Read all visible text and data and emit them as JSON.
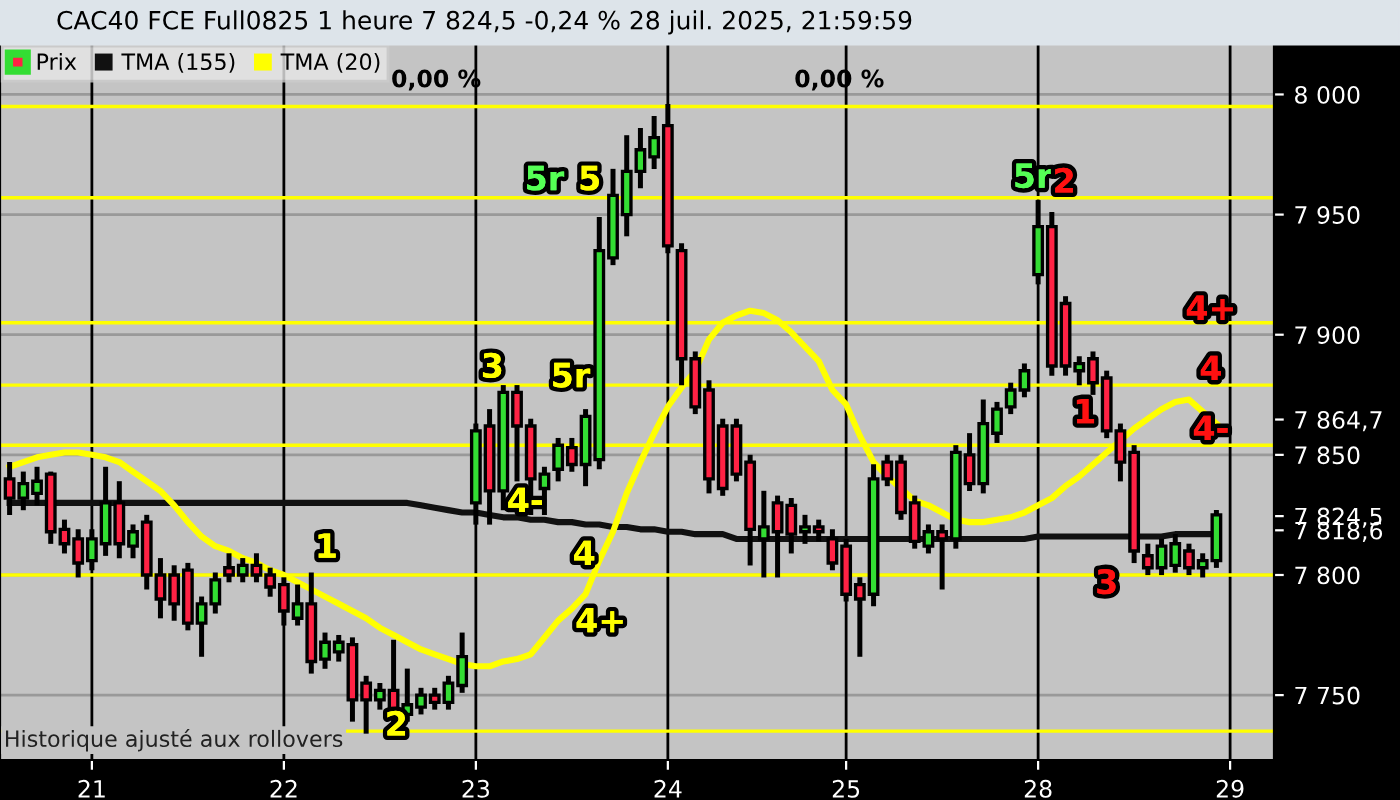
{
  "chart_data": {
    "type": "candlestick",
    "title": "CAC40 FCE Full0825 1 heure 7 824,5 -0,24 % 28 juil. 2025, 21:59:59",
    "categories": [
      null,
      null,
      null,
      null,
      null,
      null,
      "21",
      null,
      null,
      null,
      null,
      null,
      null,
      null,
      null,
      null,
      null,
      null,
      null,
      null,
      "22",
      null,
      null,
      null,
      null,
      null,
      null,
      null,
      null,
      null,
      null,
      null,
      null,
      null,
      "23",
      null,
      null,
      null,
      null,
      null,
      null,
      null,
      null,
      null,
      null,
      null,
      null,
      null,
      "24",
      null,
      null,
      null,
      null,
      null,
      null,
      null,
      null,
      null,
      null,
      null,
      null,
      "25",
      null,
      null,
      null,
      null,
      null,
      null,
      null,
      null,
      null,
      null,
      null,
      null,
      null,
      "28",
      null,
      null,
      null,
      null,
      null,
      null,
      null,
      null,
      null,
      null,
      null,
      null,
      null,
      "29"
    ],
    "ylim": [
      7723,
      8021
    ],
    "yticks": [
      {
        "value": 7750,
        "label": "7 750"
      },
      {
        "value": 7800,
        "label": "7 800"
      },
      {
        "value": 7818.6,
        "label": "7 818,6"
      },
      {
        "value": 7824.5,
        "label": "7 824,5"
      },
      {
        "value": 7850,
        "label": "7 850"
      },
      {
        "value": 7864.7,
        "label": "7 864,7"
      },
      {
        "value": 7900,
        "label": "7 900"
      },
      {
        "value": 7950,
        "label": "7 950"
      },
      {
        "value": 8000,
        "label": "8 000"
      }
    ],
    "grid": true,
    "legend": "top left",
    "series": [
      {
        "name": "Prix",
        "colors": [
          "#ff2244",
          "#33dd33",
          "#33dd33",
          "#ff2244",
          "#ff2244",
          "#ff2244",
          "#33dd33",
          "#33dd33",
          "#ff2244",
          "#33dd33",
          "#ff2244",
          "#ff2244",
          "#ff2244",
          "#ff2244",
          "#33dd33",
          "#33dd33",
          "#ff2244",
          "#33dd33",
          "#ff2244",
          "#ff2244",
          "#ff2244",
          "#33dd33",
          "#ff2244",
          "#33dd33",
          "#33dd33",
          "#ff2244",
          "#ff2244",
          "#33dd33",
          "#ff2244",
          "#33dd33",
          "#33dd33",
          "#ff2244",
          "#33dd33",
          "#33dd33",
          "#33dd33",
          "#ff2244",
          "#33dd33",
          "#ff2244",
          "#ff2244",
          "#33dd33",
          "#33dd33",
          "#ff2244",
          "#33dd33",
          "#33dd33",
          "#33dd33",
          "#33dd33",
          "#33dd33",
          "#33dd33",
          "#ff2244",
          "#ff2244",
          "#ff2244",
          "#ff2244",
          "#ff2244",
          "#ff2244",
          "#ff2244",
          "#33dd33",
          "#ff2244",
          "#ff2244",
          "#33dd33",
          "#ff2244",
          "#ff2244",
          "#ff2244",
          "#ff2244",
          "#33dd33",
          "#ff2244",
          "#ff2244",
          "#ff2244",
          "#33dd33",
          "#ff2244",
          "#33dd33",
          "#ff2244",
          "#33dd33",
          "#33dd33",
          "#33dd33",
          "#33dd33",
          "#33dd33",
          "#ff2244",
          "#ff2244",
          "#33dd33",
          "#ff2244",
          "#ff2244",
          "#ff2244",
          "#ff2244",
          "#ff2244",
          "#33dd33",
          "#33dd33",
          "#ff2244",
          "#33dd33",
          "#33dd33",
          null
        ],
        "ohlc": [
          [
            7840,
            7846,
            7826,
            7832
          ],
          [
            7832,
            7842,
            7828,
            7838
          ],
          [
            7834,
            7844,
            7830,
            7839
          ],
          [
            7842,
            7842,
            7814,
            7818
          ],
          [
            7819,
            7822,
            7810,
            7813
          ],
          [
            7815,
            7818,
            7800,
            7805
          ],
          [
            7806,
            7818,
            7803,
            7815
          ],
          [
            7813,
            7844,
            7809,
            7830
          ],
          [
            7830,
            7838,
            7808,
            7813
          ],
          [
            7812,
            7820,
            7808,
            7818
          ],
          [
            7822,
            7824,
            7795,
            7800
          ],
          [
            7800,
            7806,
            7783,
            7790
          ],
          [
            7800,
            7803,
            7782,
            7788
          ],
          [
            7802,
            7804,
            7778,
            7780
          ],
          [
            7780,
            7790,
            7767,
            7788
          ],
          [
            7788,
            7800,
            7785,
            7798
          ],
          [
            7803,
            7808,
            7798,
            7800
          ],
          [
            7800,
            7806,
            7798,
            7804
          ],
          [
            7804,
            7808,
            7798,
            7800
          ],
          [
            7800,
            7802,
            7792,
            7795
          ],
          [
            7796,
            7798,
            7780,
            7785
          ],
          [
            7782,
            7795,
            7780,
            7788
          ],
          [
            7788,
            7800,
            7760,
            7764
          ],
          [
            7765,
            7775,
            7762,
            7772
          ],
          [
            7768,
            7774,
            7765,
            7772
          ],
          [
            7771,
            7773,
            7740,
            7748
          ],
          [
            7755,
            7757,
            7735,
            7748
          ],
          [
            7748,
            7754,
            7745,
            7752
          ],
          [
            7752,
            7772,
            7735,
            7742
          ],
          [
            7742,
            7760,
            7740,
            7746
          ],
          [
            7745,
            7752,
            7743,
            7750
          ],
          [
            7750,
            7752,
            7745,
            7747
          ],
          [
            7747,
            7757,
            7745,
            7755
          ],
          [
            7754,
            7775,
            7752,
            7766
          ],
          [
            7830,
            7862,
            7822,
            7860
          ],
          [
            7862,
            7868,
            7822,
            7835
          ],
          [
            7835,
            7878,
            7828,
            7876
          ],
          [
            7876,
            7878,
            7840,
            7862
          ],
          [
            7862,
            7864,
            7826,
            7840
          ],
          [
            7836,
            7844,
            7826,
            7842
          ],
          [
            7844,
            7856,
            7840,
            7854
          ],
          [
            7853,
            7856,
            7844,
            7846
          ],
          [
            7846,
            7868,
            7838,
            7866
          ],
          [
            7848,
            7948,
            7845,
            7935
          ],
          [
            7932,
            7968,
            7930,
            7958
          ],
          [
            7950,
            7982,
            7942,
            7968
          ],
          [
            7968,
            7985,
            7962,
            7977
          ],
          [
            7974,
            7990,
            7970,
            7982
          ],
          [
            7987,
            7995,
            7935,
            7937
          ],
          [
            7935,
            7937,
            7880,
            7890
          ],
          [
            7890,
            7892,
            7868,
            7870
          ],
          [
            7877,
            7880,
            7835,
            7840
          ],
          [
            7862,
            7864,
            7834,
            7836
          ],
          [
            7862,
            7864,
            7840,
            7842
          ],
          [
            7847,
            7849,
            7805,
            7819
          ],
          [
            7815,
            7834,
            7800,
            7820
          ],
          [
            7830,
            7832,
            7800,
            7818
          ],
          [
            7829,
            7831,
            7810,
            7817
          ],
          [
            7818,
            7824,
            7814,
            7820
          ],
          [
            7820,
            7822,
            7815,
            7818
          ],
          [
            7815,
            7818,
            7803,
            7805
          ],
          [
            7812,
            7814,
            7790,
            7792
          ],
          [
            7796,
            7798,
            7767,
            7790
          ],
          [
            7792,
            7845,
            7788,
            7840
          ],
          [
            7847,
            7849,
            7838,
            7840
          ],
          [
            7847,
            7849,
            7824,
            7826
          ],
          [
            7830,
            7832,
            7812,
            7814
          ],
          [
            7812,
            7820,
            7810,
            7818
          ],
          [
            7818,
            7820,
            7795,
            7815
          ],
          [
            7815,
            7853,
            7812,
            7851
          ],
          [
            7850,
            7858,
            7836,
            7838
          ],
          [
            7838,
            7872,
            7835,
            7863
          ],
          [
            7859,
            7871,
            7856,
            7869
          ],
          [
            7870,
            7879,
            7868,
            7877
          ],
          [
            7877,
            7887,
            7875,
            7885
          ],
          [
            7925,
            7955,
            7922,
            7945
          ],
          [
            7945,
            7950,
            7884,
            7887
          ],
          [
            7913,
            7915,
            7884,
            7887
          ],
          [
            7885,
            7890,
            7880,
            7888
          ],
          [
            7890,
            7892,
            7876,
            7880
          ],
          [
            7882,
            7884,
            7858,
            7860
          ],
          [
            7860,
            7862,
            7840,
            7847
          ],
          [
            7851,
            7853,
            7806,
            7810
          ],
          [
            7808,
            7812,
            7801,
            7803
          ],
          [
            7803,
            7814,
            7801,
            7812
          ],
          [
            7804,
            7816,
            7802,
            7813
          ],
          [
            7810,
            7812,
            7801,
            7803
          ],
          [
            7803,
            7808,
            7800,
            7806
          ],
          [
            7806,
            7826,
            7804,
            7825
          ],
          null
        ]
      },
      {
        "name": "TMA (155)",
        "type": "line",
        "color": "#111111",
        "values": [
          7830,
          7830,
          7830,
          7830,
          7830,
          7830,
          7830,
          7830,
          7830,
          7830,
          7830,
          7830,
          7830,
          7830,
          7830,
          7830,
          7830,
          7830,
          7830,
          7830,
          7830,
          7830,
          7830,
          7830,
          7830,
          7830,
          7830,
          7830,
          7830,
          7830,
          7829,
          7828,
          7827,
          7826,
          7826,
          7825,
          7824,
          7824,
          7823,
          7823,
          7822,
          7822,
          7821,
          7821,
          7820,
          7820,
          7819,
          7819,
          7818,
          7818,
          7817,
          7817,
          7817,
          7815,
          7815,
          7815,
          7815,
          7815,
          7815,
          7815,
          7815,
          7815,
          7815,
          7815,
          7815,
          7815,
          7815,
          7815,
          7815,
          7815,
          7815,
          7815,
          7815,
          7815,
          7815,
          7816,
          7816,
          7816,
          7816,
          7816,
          7816,
          7816,
          7816,
          7816,
          7816,
          7817,
          7817,
          7817,
          7817,
          null
        ]
      },
      {
        "name": "TMA (20)",
        "type": "line",
        "color": "#ffff00",
        "values": [
          7845,
          7847,
          7849,
          7850,
          7851,
          7851,
          7850,
          7849,
          7847,
          7843,
          7839,
          7835,
          7829,
          7822,
          7816,
          7812,
          7810,
          7807,
          7805,
          7802,
          7800,
          7797,
          7794,
          7791,
          7788,
          7785,
          7782,
          7778,
          7775,
          7772,
          7769,
          7767,
          7765,
          7763,
          7762,
          7762,
          7764,
          7765,
          7767,
          7774,
          7781,
          7786,
          7792,
          7806,
          7818,
          7834,
          7847,
          7859,
          7870,
          7878,
          7885,
          7898,
          7905,
          7908,
          7910,
          7909,
          7906,
          7901,
          7895,
          7889,
          7877,
          7871,
          7858,
          7847,
          7841,
          7836,
          7831,
          7829,
          7826,
          7823,
          7822,
          7822,
          7823,
          7824,
          7826,
          7829,
          7832,
          7837,
          7841,
          7846,
          7851,
          7856,
          7861,
          7865,
          7869,
          7872,
          7873,
          7868,
          7863,
          null
        ]
      }
    ],
    "ref_lines": [
      {
        "axis": "y",
        "value": 7995,
        "color": "#ffff00"
      },
      {
        "axis": "y",
        "value": 7957,
        "color": "#ffff00"
      },
      {
        "axis": "y",
        "value": 7905,
        "color": "#ffff00"
      },
      {
        "axis": "y",
        "value": 7879,
        "color": "#ffff00"
      },
      {
        "axis": "y",
        "value": 7854,
        "color": "#ffff00"
      },
      {
        "axis": "y",
        "value": 7800,
        "color": "#ffff00"
      },
      {
        "axis": "y",
        "value": 7735,
        "color": "#ffff00"
      }
    ],
    "annotations": [
      "1",
      "2",
      "3",
      "4-",
      "5r",
      "5",
      "5r",
      "4",
      "4+",
      "5r",
      "2",
      "1",
      "4+",
      "4",
      "4-",
      "3",
      "0,00 %",
      "0,00 %",
      "Historique ajusté aux rollovers"
    ]
  }
}
